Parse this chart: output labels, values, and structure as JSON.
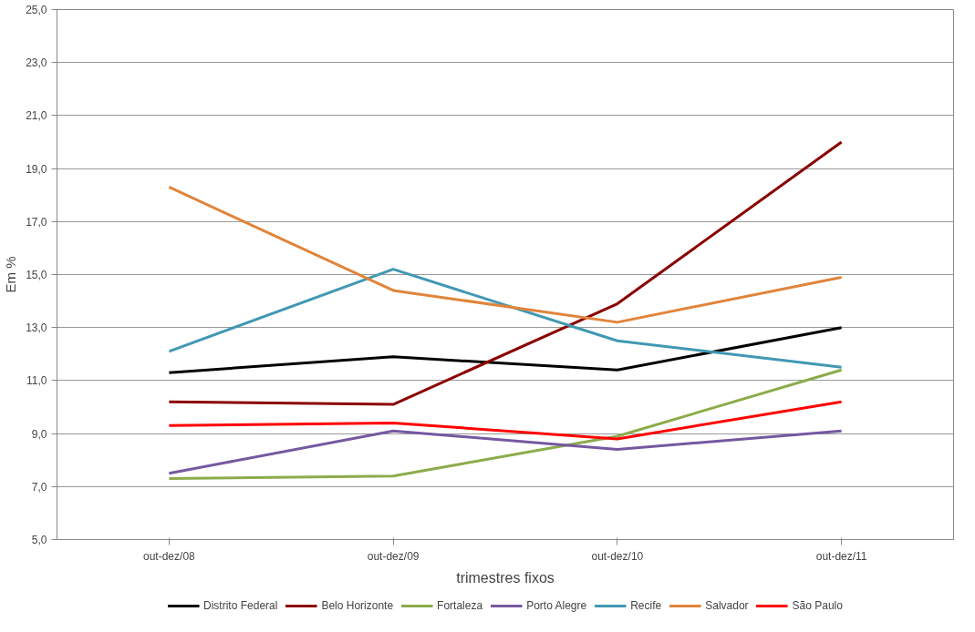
{
  "chart_data": {
    "type": "line",
    "xlabel": "trimestres fixos",
    "ylabel": "Em %",
    "categories": [
      "out-dez/08",
      "out-dez/09",
      "out-dez/10",
      "out-dez/11"
    ],
    "series": [
      {
        "name": "Distrito Federal",
        "color": "#000000",
        "values": [
          11.3,
          11.9,
          11.4,
          13.0
        ]
      },
      {
        "name": "Belo Horizonte",
        "color": "#8b0000",
        "values": [
          10.2,
          10.1,
          13.9,
          20.0
        ]
      },
      {
        "name": "Fortaleza",
        "color": "#8cab4a",
        "values": [
          7.3,
          7.4,
          8.9,
          11.4
        ]
      },
      {
        "name": "Porto Alegre",
        "color": "#7459a0",
        "values": [
          7.5,
          9.1,
          8.4,
          9.1
        ]
      },
      {
        "name": "Recife",
        "color": "#4198b3",
        "values": [
          12.1,
          15.2,
          12.5,
          11.5
        ]
      },
      {
        "name": "Salvador",
        "color": "#e0843a",
        "values": [
          18.3,
          14.4,
          13.2,
          14.9
        ]
      },
      {
        "name": "São Paulo",
        "color": "#ff0000",
        "values": [
          9.3,
          9.4,
          8.8,
          10.2
        ]
      }
    ],
    "ylim": [
      5,
      25
    ],
    "yticks": [
      {
        "value": 5,
        "label": "5,0"
      },
      {
        "value": 7,
        "label": "7,0"
      },
      {
        "value": 9,
        "label": "9,0"
      },
      {
        "value": 11,
        "label": "11,0"
      },
      {
        "value": 13,
        "label": "13,0"
      },
      {
        "value": 15,
        "label": "15,0"
      },
      {
        "value": 17,
        "label": "17,0"
      },
      {
        "value": 19,
        "label": "19,0"
      },
      {
        "value": 21,
        "label": "21,0"
      },
      {
        "value": 23,
        "label": "23,0"
      },
      {
        "value": 25,
        "label": "25,0"
      }
    ],
    "grid": "y",
    "legend": "bottom",
    "marker": "none",
    "line_style": "solid"
  }
}
